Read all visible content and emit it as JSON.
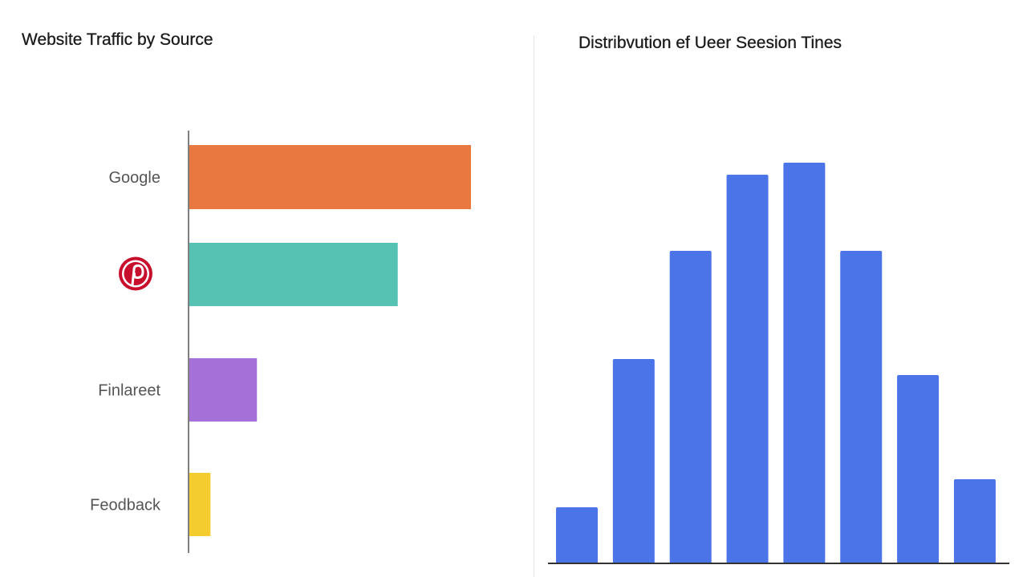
{
  "chart_data": [
    {
      "type": "bar",
      "orientation": "horizontal",
      "title": "Website Traffic by Source",
      "categories": [
        {
          "label": "Google",
          "icon": null,
          "value": 100,
          "color": "#E8783F"
        },
        {
          "label": "",
          "icon": "pinterest-logo-icon",
          "value": 74,
          "color": "#55C2B4"
        },
        {
          "label": "Finlareet",
          "icon": null,
          "value": 24,
          "color": "#A570D8"
        },
        {
          "label": "Feodback",
          "icon": null,
          "value": 7.5,
          "color": "#F5CC2E"
        }
      ],
      "xlim": [
        0,
        100
      ],
      "grid": false,
      "legend": "none",
      "icon_colors": {
        "pinterest": "#C8102E"
      }
    },
    {
      "type": "bar",
      "title": "Distribvution ef Ueer Seesion Tines",
      "values": [
        14,
        51,
        78,
        97,
        100,
        78,
        47,
        21
      ],
      "color": "#4A74E8",
      "ylim": [
        0,
        100
      ],
      "grid": false,
      "legend": "none"
    }
  ]
}
